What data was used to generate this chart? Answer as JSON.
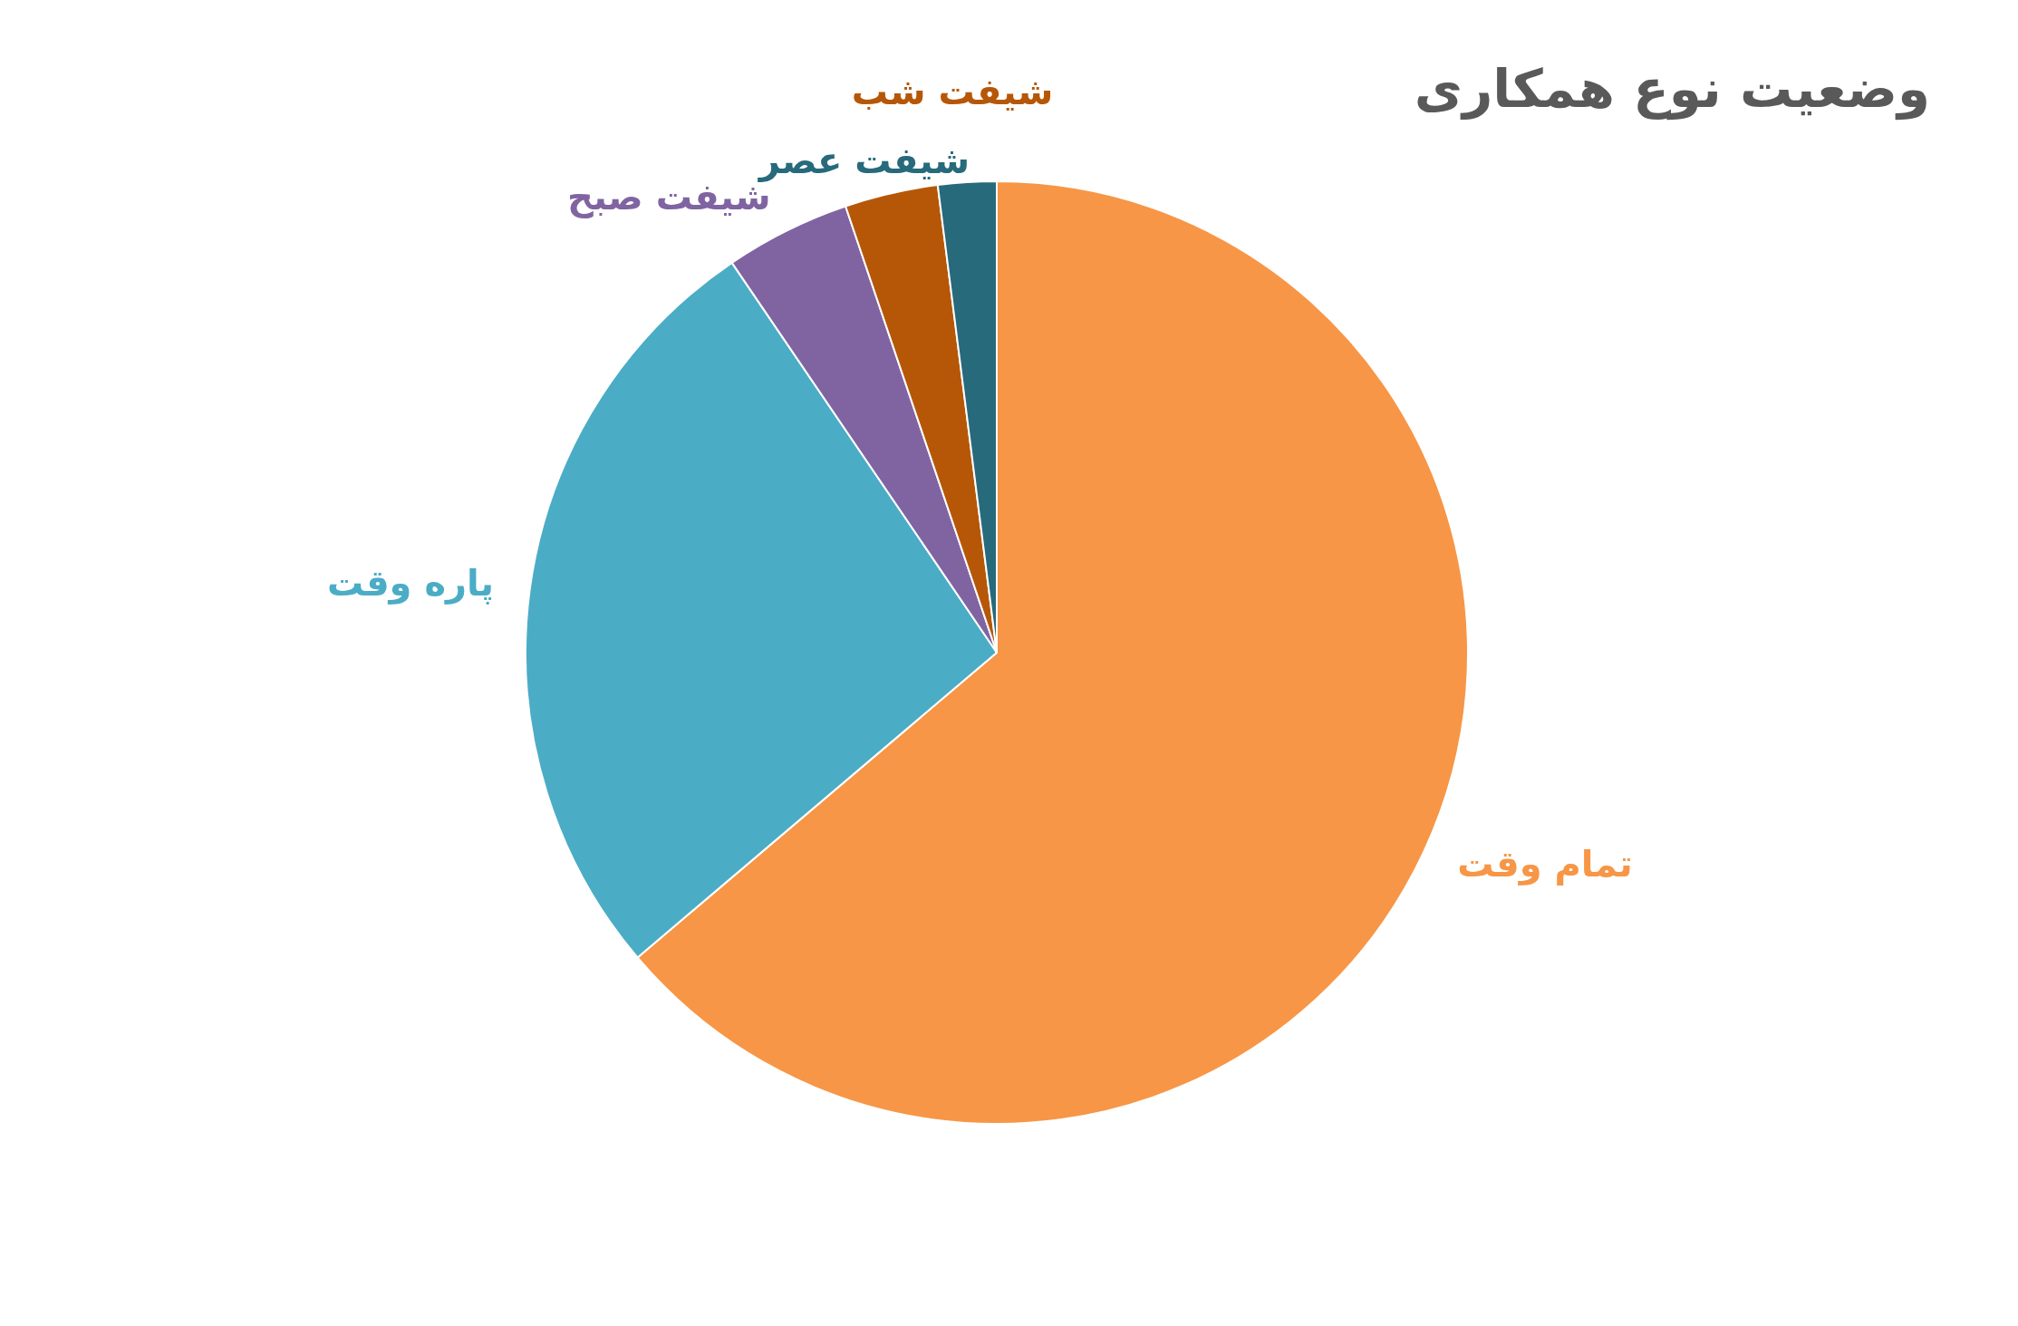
{
  "chart_data": {
    "type": "pie",
    "title": "وضعیت نوع همکاری",
    "categories": [
      "تمام وقت",
      "پاره وقت",
      "شیفت صبح",
      "شیفت شب",
      "شیفت عصر"
    ],
    "values": [
      63.8,
      26.7,
      4.3,
      3.2,
      2.0
    ],
    "colors": [
      "#f79646",
      "#4bacc6",
      "#8064a2",
      "#b65708",
      "#276a7c"
    ]
  }
}
